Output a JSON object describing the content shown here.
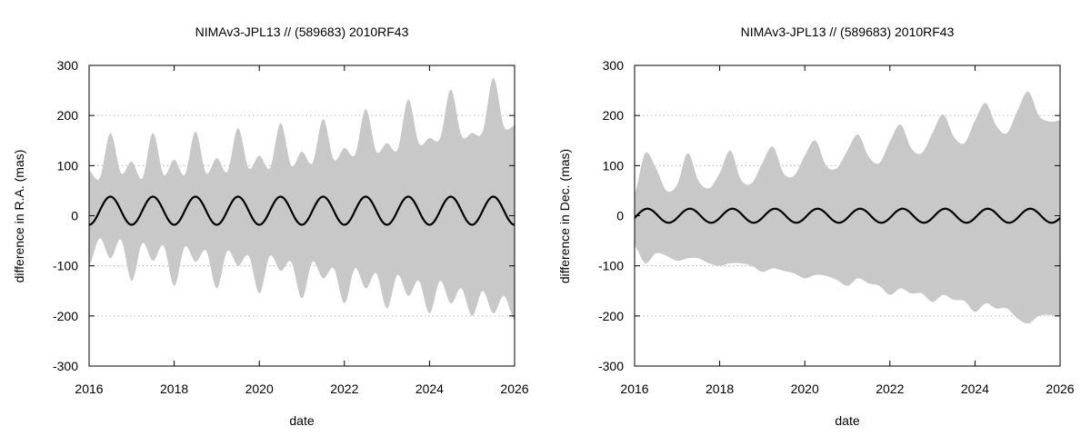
{
  "chart_data": [
    {
      "type": "area",
      "title": "NIMAv3-JPL13 // (589683) 2010RF43",
      "xlabel": "date",
      "ylabel": "difference in R.A. (mas)",
      "xlim": [
        2016,
        2026
      ],
      "ylim": [
        -300,
        300
      ],
      "x_ticks": [
        "2016",
        "2018",
        "2020",
        "2022",
        "2024",
        "2026"
      ],
      "y_ticks": [
        "300",
        "200",
        "100",
        "0",
        "-100",
        "-200",
        "-300"
      ],
      "grid": "horizontal dotted",
      "colors": {
        "band": "#c8c8c8",
        "line": "#000000"
      },
      "series": [
        {
          "role": "uncertainty band",
          "x": [
            2016.0,
            2016.25,
            2016.5,
            2016.75,
            2017.0,
            2017.25,
            2017.5,
            2017.75,
            2018.0,
            2018.25,
            2018.5,
            2018.75,
            2019.0,
            2019.25,
            2019.5,
            2019.75,
            2020.0,
            2020.25,
            2020.5,
            2020.75,
            2021.0,
            2021.25,
            2021.5,
            2021.75,
            2022.0,
            2022.25,
            2022.5,
            2022.75,
            2023.0,
            2023.25,
            2023.5,
            2023.75,
            2024.0,
            2024.25,
            2024.5,
            2024.75,
            2025.0,
            2025.25,
            2025.5,
            2025.75,
            2026.0
          ],
          "upper": [
            90,
            75,
            165,
            85,
            108,
            75,
            165,
            82,
            112,
            82,
            168,
            85,
            115,
            88,
            175,
            95,
            120,
            95,
            185,
            100,
            128,
            105,
            193,
            112,
            135,
            122,
            213,
            128,
            145,
            132,
            232,
            145,
            155,
            155,
            252,
            160,
            165,
            168,
            275,
            178,
            180
          ],
          "lower": [
            -100,
            -45,
            -85,
            -48,
            -130,
            -55,
            -90,
            -60,
            -140,
            -62,
            -92,
            -70,
            -145,
            -70,
            -100,
            -80,
            -155,
            -80,
            -110,
            -92,
            -165,
            -92,
            -125,
            -105,
            -175,
            -105,
            -145,
            -115,
            -185,
            -118,
            -160,
            -130,
            -195,
            -130,
            -175,
            -145,
            -200,
            -150,
            -195,
            -160,
            -210
          ]
        },
        {
          "role": "difference curve",
          "amplitude": 28,
          "offset": 10,
          "period_years": 1.0,
          "first_max_at": 2016.5
        }
      ]
    },
    {
      "type": "area",
      "title": "NIMAv3-JPL13 // (589683) 2010RF43",
      "xlabel": "date",
      "ylabel": "difference in Dec. (mas)",
      "xlim": [
        2016,
        2026
      ],
      "ylim": [
        -300,
        300
      ],
      "x_ticks": [
        "2016",
        "2018",
        "2020",
        "2022",
        "2024",
        "2026"
      ],
      "y_ticks": [
        "300",
        "200",
        "100",
        "0",
        "-100",
        "-200",
        "-300"
      ],
      "grid": "horizontal dotted",
      "colors": {
        "band": "#c8c8c8",
        "line": "#000000"
      },
      "series": [
        {
          "role": "uncertainty band",
          "x": [
            2016.0,
            2016.25,
            2016.5,
            2016.75,
            2017.0,
            2017.25,
            2017.5,
            2017.75,
            2018.0,
            2018.25,
            2018.5,
            2018.75,
            2019.0,
            2019.25,
            2019.5,
            2019.75,
            2020.0,
            2020.25,
            2020.5,
            2020.75,
            2021.0,
            2021.25,
            2021.5,
            2021.75,
            2022.0,
            2022.25,
            2022.5,
            2022.75,
            2023.0,
            2023.25,
            2023.5,
            2023.75,
            2024.0,
            2024.25,
            2024.5,
            2024.75,
            2025.0,
            2025.25,
            2025.5,
            2025.75,
            2026.0
          ],
          "upper": [
            45,
            125,
            95,
            50,
            62,
            125,
            70,
            55,
            85,
            130,
            72,
            65,
            105,
            138,
            85,
            80,
            120,
            150,
            100,
            95,
            130,
            162,
            118,
            105,
            148,
            182,
            135,
            125,
            165,
            202,
            158,
            145,
            190,
            225,
            180,
            165,
            210,
            248,
            200,
            188,
            190
          ],
          "lower": [
            -60,
            -95,
            -75,
            -80,
            -90,
            -85,
            -85,
            -95,
            -100,
            -95,
            -95,
            -100,
            -112,
            -105,
            -110,
            -115,
            -125,
            -118,
            -120,
            -128,
            -140,
            -125,
            -135,
            -140,
            -158,
            -145,
            -155,
            -155,
            -172,
            -158,
            -168,
            -170,
            -192,
            -175,
            -185,
            -185,
            -205,
            -215,
            -200,
            -198,
            -200
          ]
        },
        {
          "role": "difference curve",
          "amplitude": 14,
          "offset": 0,
          "period_years": 1.0,
          "first_max_at": 2016.3
        }
      ]
    }
  ]
}
